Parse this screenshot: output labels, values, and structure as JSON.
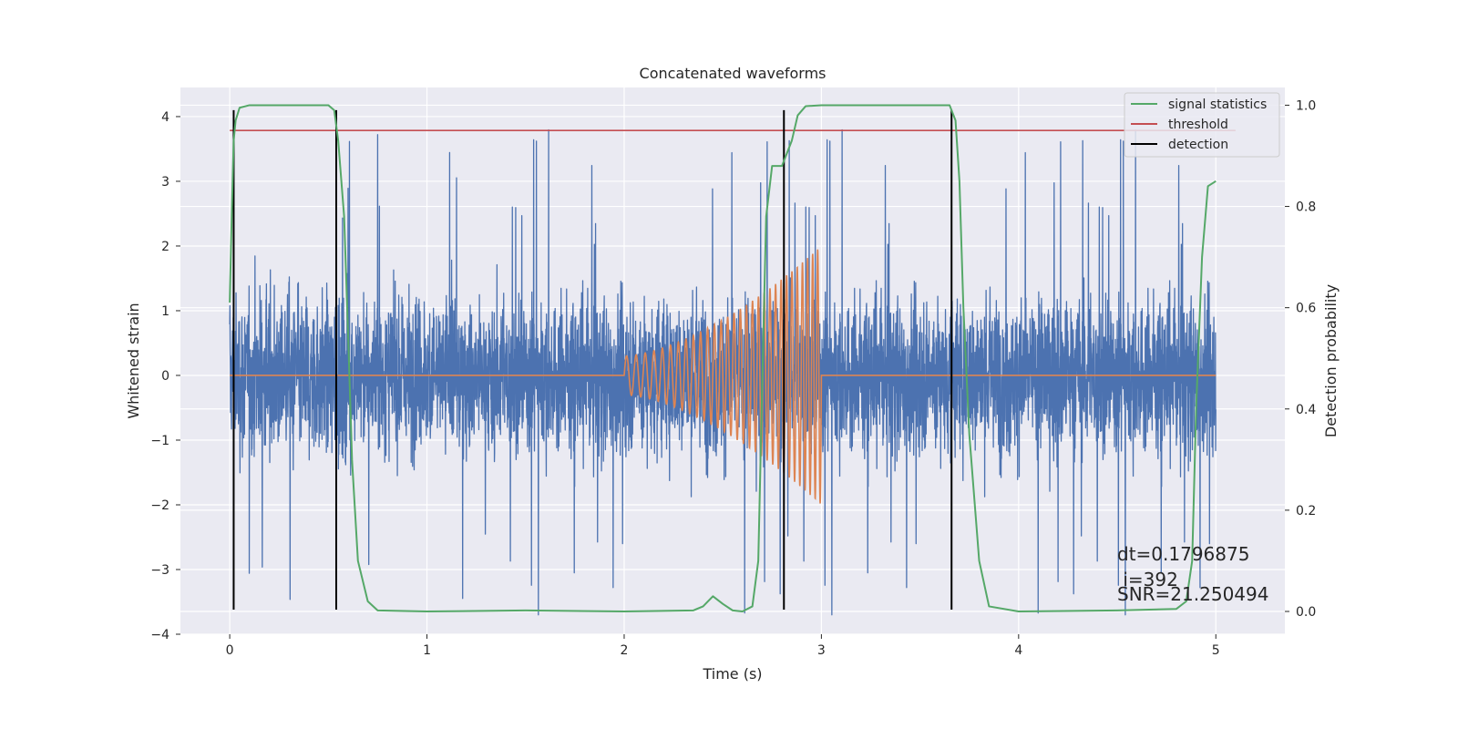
{
  "chart_data": {
    "type": "line",
    "title": "Concatenated waveforms",
    "xlabel": "Time (s)",
    "ylabel": "Whitened strain",
    "y2label": "Detection probability",
    "xlim": [
      -0.25,
      5.35
    ],
    "ylim": [
      -4.0,
      4.45
    ],
    "y2lim": [
      -0.045,
      1.035
    ],
    "xticks": [
      0,
      1,
      2,
      3,
      4,
      5
    ],
    "yticks": [
      -4,
      -3,
      -2,
      -1,
      0,
      1,
      2,
      3,
      4
    ],
    "y2ticks": [
      0.0,
      0.2,
      0.4,
      0.6,
      0.8,
      1.0
    ],
    "grid": true,
    "legend_position": "top-right",
    "colors": {
      "strain": "#4c72b0",
      "template": "#dd8452",
      "signal": "#55a868",
      "threshold": "#c44e52",
      "detection": "#000000",
      "background": "#eaeaf2"
    },
    "series": [
      {
        "name": "",
        "role": "whitened strain (noise)",
        "x_range": [
          0,
          5
        ],
        "sample_dt": 0.001,
        "axis": "left",
        "envelope_typical": [
          -1.6,
          1.6
        ],
        "peak_range": [
          -3.7,
          4.1
        ]
      },
      {
        "name": "",
        "role": "injected chirp",
        "axis": "left",
        "x_start": 2.0,
        "x_end": 3.0,
        "amp_start": 0.3,
        "amp_end": 2.0,
        "freq_start": 20,
        "freq_end": 40
      },
      {
        "name": "signal statistics",
        "axis": "right",
        "x": [
          0,
          0.01,
          0.02,
          0.03,
          0.05,
          0.1,
          0.5,
          0.53,
          0.55,
          0.58,
          0.6,
          0.62,
          0.65,
          0.7,
          0.75,
          1.0,
          1.5,
          2.0,
          2.35,
          2.4,
          2.45,
          2.5,
          2.55,
          2.6,
          2.65,
          2.68,
          2.7,
          2.72,
          2.75,
          2.8,
          2.85,
          2.88,
          2.92,
          3.0,
          3.5,
          3.65,
          3.68,
          3.7,
          3.72,
          3.75,
          3.8,
          3.85,
          4.0,
          4.5,
          4.8,
          4.85,
          4.88,
          4.9,
          4.93,
          4.96,
          5.0
        ],
        "values": [
          0.61,
          0.78,
          0.93,
          0.97,
          0.995,
          1.0,
          1.0,
          0.99,
          0.93,
          0.78,
          0.55,
          0.3,
          0.1,
          0.02,
          0.002,
          0.0,
          0.002,
          0.0,
          0.002,
          0.01,
          0.03,
          0.015,
          0.002,
          0.0,
          0.01,
          0.1,
          0.45,
          0.78,
          0.88,
          0.88,
          0.93,
          0.98,
          0.998,
          1.0,
          1.0,
          1.0,
          0.97,
          0.85,
          0.6,
          0.35,
          0.1,
          0.01,
          0.0,
          0.002,
          0.005,
          0.02,
          0.1,
          0.4,
          0.7,
          0.84,
          0.85
        ]
      },
      {
        "name": "threshold",
        "axis": "right",
        "x": [
          0,
          5.1
        ],
        "values": [
          0.95,
          0.95
        ]
      },
      {
        "name": "detection",
        "axis": "left",
        "type": "vlines",
        "x": [
          0.02,
          0.54,
          2.81,
          3.66
        ],
        "ymin": -3.62,
        "ymax": 4.1
      }
    ],
    "annotations": [
      "dt=0.1796875",
      " i=392",
      "SNR=21.250494"
    ]
  }
}
